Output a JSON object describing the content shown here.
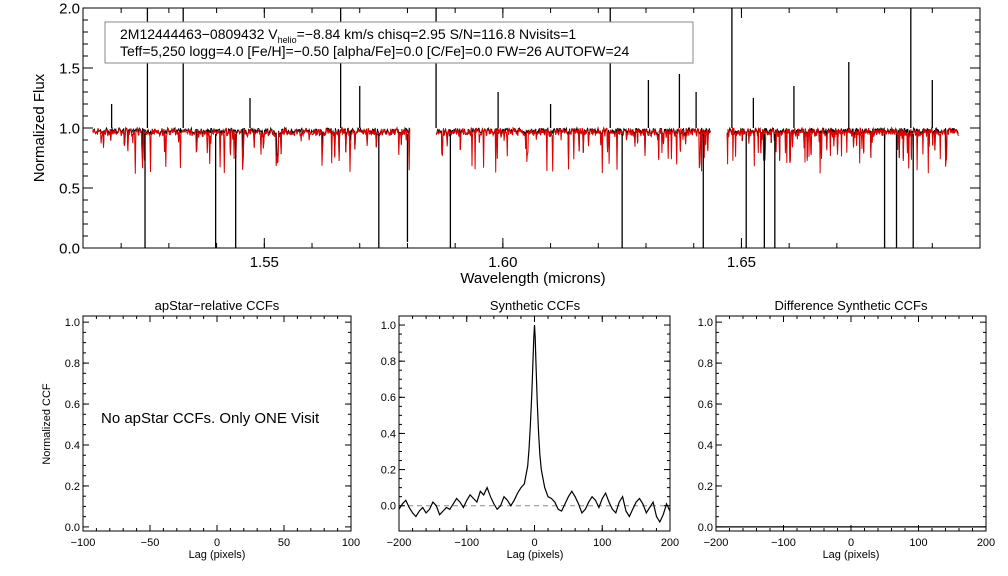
{
  "chart_data": [
    {
      "type": "line",
      "id": "spectrum",
      "xlabel": "Wavelength (microns)",
      "ylabel": "Normalized Flux",
      "xlim": [
        1.512,
        1.7
      ],
      "ylim": [
        0.0,
        2.0
      ],
      "xticks": [
        1.55,
        1.6,
        1.65
      ],
      "xtick_labels": [
        "1.55",
        "1.60",
        "1.65"
      ],
      "yticks": [
        0.0,
        0.5,
        1.0,
        1.5,
        2.0
      ],
      "ytick_labels": [
        "0.0",
        "0.5",
        "1.0",
        "1.5",
        "2.0"
      ],
      "grid": false,
      "legend": {
        "line1": "2M12444463−0809432  V",
        "line1_sub": "helio",
        "line1_rest": "=−8.84 km/s  chisq=2.95  S/N=116.8  Nvisits=1",
        "line2": "Teff=5,250 logg=4.0 [Fe/H]=−0.50 [alpha/Fe]=0.0 [C/Fe]=0.0 FW=26 AUTOFW=24",
        "placement": "top-left"
      },
      "chips": [
        {
          "range": [
            1.514,
            1.5805
          ]
        },
        {
          "range": [
            1.586,
            1.6435
          ]
        },
        {
          "range": [
            1.647,
            1.6955
          ]
        }
      ],
      "series": [
        {
          "color": "#000000"
        },
        {
          "color": "#e00000"
        }
      ],
      "emission_spikes": [
        {
          "x": 1.5255,
          "y": 2.0
        },
        {
          "x": 1.533,
          "y": 2.0
        },
        {
          "x": 1.518,
          "y": 1.2
        },
        {
          "x": 1.547,
          "y": 1.25
        },
        {
          "x": 1.566,
          "y": 2.0
        },
        {
          "x": 1.57,
          "y": 1.35
        },
        {
          "x": 1.586,
          "y": 2.0
        },
        {
          "x": 1.599,
          "y": 1.3
        },
        {
          "x": 1.61,
          "y": 1.2
        },
        {
          "x": 1.6225,
          "y": 2.0
        },
        {
          "x": 1.6305,
          "y": 1.4
        },
        {
          "x": 1.637,
          "y": 1.45
        },
        {
          "x": 1.6405,
          "y": 1.3
        },
        {
          "x": 1.648,
          "y": 2.0
        },
        {
          "x": 1.6525,
          "y": 1.25
        },
        {
          "x": 1.661,
          "y": 1.35
        },
        {
          "x": 1.6725,
          "y": 1.55
        },
        {
          "x": 1.69,
          "y": 1.4
        },
        {
          "x": 1.6855,
          "y": 2.0
        }
      ],
      "absorption_spikes": [
        {
          "x": 1.525,
          "y": 0.0
        },
        {
          "x": 1.5398,
          "y": 0.0
        },
        {
          "x": 1.544,
          "y": 0.0
        },
        {
          "x": 1.574,
          "y": 0.0
        },
        {
          "x": 1.58,
          "y": 0.05
        },
        {
          "x": 1.589,
          "y": 0.0
        },
        {
          "x": 1.625,
          "y": 0.0
        },
        {
          "x": 1.642,
          "y": 0.0
        },
        {
          "x": 1.651,
          "y": 0.0
        },
        {
          "x": 1.6548,
          "y": 0.0
        },
        {
          "x": 1.657,
          "y": 0.0
        },
        {
          "x": 1.68,
          "y": 0.0
        },
        {
          "x": 1.6825,
          "y": 0.0
        },
        {
          "x": 1.686,
          "y": 0.0
        }
      ]
    },
    {
      "type": "line",
      "id": "apstar-ccf",
      "title": "apStar−relative CCFs",
      "xlabel": "Lag (pixels)",
      "ylabel": "Normalized CCF",
      "xlim": [
        -100,
        100
      ],
      "ylim": [
        -0.02,
        1.03
      ],
      "xticks": [
        -100,
        -50,
        0,
        50,
        100
      ],
      "xtick_labels": [
        "−100",
        "−50",
        "0",
        "50",
        "100"
      ],
      "yticks": [
        0.0,
        0.2,
        0.4,
        0.6,
        0.8,
        1.0
      ],
      "ytick_labels": [
        "0.0",
        "0.2",
        "0.4",
        "0.6",
        "0.8",
        "1.0"
      ],
      "annotation": "No apStar CCFs.  Only ONE Visit",
      "series": []
    },
    {
      "type": "line",
      "id": "synthetic-ccf",
      "title": "Synthetic CCFs",
      "xlabel": "Lag (pixels)",
      "xlim": [
        -200,
        200
      ],
      "ylim": [
        -0.14,
        1.05
      ],
      "xticks": [
        -200,
        -100,
        0,
        100,
        200
      ],
      "xtick_labels": [
        "−200",
        "−100",
        "0",
        "100",
        "200"
      ],
      "yticks": [
        0.0,
        0.2,
        0.4,
        0.6,
        0.8,
        1.0
      ],
      "ytick_labels": [
        "0.0",
        "0.2",
        "0.4",
        "0.6",
        "0.8",
        "1.0"
      ],
      "reference_line": {
        "y": 0.0,
        "style": "dashed",
        "color": "#888888"
      },
      "series": [
        {
          "color": "#000000",
          "x": [
            -200,
            -195,
            -190,
            -185,
            -180,
            -175,
            -170,
            -165,
            -160,
            -155,
            -150,
            -145,
            -140,
            -135,
            -130,
            -125,
            -120,
            -115,
            -110,
            -105,
            -100,
            -95,
            -90,
            -85,
            -80,
            -75,
            -70,
            -65,
            -60,
            -55,
            -50,
            -45,
            -40,
            -35,
            -30,
            -25,
            -20,
            -15,
            -10,
            -8,
            -6,
            -4,
            -2,
            -1,
            0,
            1,
            2,
            4,
            6,
            8,
            10,
            15,
            20,
            25,
            30,
            35,
            40,
            45,
            50,
            55,
            60,
            65,
            70,
            75,
            80,
            85,
            90,
            95,
            100,
            105,
            110,
            115,
            120,
            125,
            130,
            135,
            140,
            145,
            150,
            155,
            160,
            165,
            170,
            175,
            180,
            185,
            190,
            195,
            200
          ],
          "y": [
            -0.02,
            0.01,
            0.03,
            -0.01,
            -0.04,
            -0.06,
            -0.03,
            -0.01,
            -0.04,
            -0.02,
            0.02,
            0.0,
            -0.05,
            -0.03,
            -0.01,
            -0.02,
            0.01,
            0.04,
            0.02,
            -0.01,
            0.03,
            0.06,
            0.04,
            0.02,
            0.08,
            0.06,
            0.1,
            0.05,
            0.01,
            -0.02,
            0.0,
            0.05,
            0.03,
            0.0,
            0.03,
            0.07,
            0.1,
            0.12,
            0.22,
            0.32,
            0.45,
            0.62,
            0.82,
            0.93,
            1.0,
            0.93,
            0.8,
            0.58,
            0.4,
            0.28,
            0.2,
            0.1,
            0.05,
            0.04,
            0.02,
            -0.02,
            -0.03,
            0.01,
            0.05,
            0.08,
            0.05,
            0.01,
            -0.04,
            -0.02,
            0.02,
            0.05,
            0.03,
            -0.01,
            0.04,
            0.07,
            0.02,
            -0.02,
            -0.04,
            0.02,
            0.05,
            -0.03,
            -0.06,
            -0.02,
            0.02,
            0.04,
            0.01,
            -0.04,
            -0.01,
            0.02,
            -0.06,
            -0.09,
            -0.05,
            0.01,
            -0.03
          ]
        }
      ]
    },
    {
      "type": "line",
      "id": "difference-ccf",
      "title": "Difference Synthetic CCFs",
      "xlabel": "Lag (pixels)",
      "xlim": [
        -200,
        200
      ],
      "ylim": [
        -0.02,
        1.03
      ],
      "xticks": [
        -200,
        -100,
        0,
        100,
        200
      ],
      "xtick_labels": [
        "−200",
        "−100",
        "0",
        "100",
        "200"
      ],
      "yticks": [
        0.0,
        0.2,
        0.4,
        0.6,
        0.8,
        1.0
      ],
      "ytick_labels": [
        "0.0",
        "0.2",
        "0.4",
        "0.6",
        "0.8",
        "1.0"
      ],
      "series": [
        {
          "color": "#000000",
          "x": [
            -200,
            200
          ],
          "y": [
            0.0,
            0.0
          ]
        }
      ]
    }
  ]
}
